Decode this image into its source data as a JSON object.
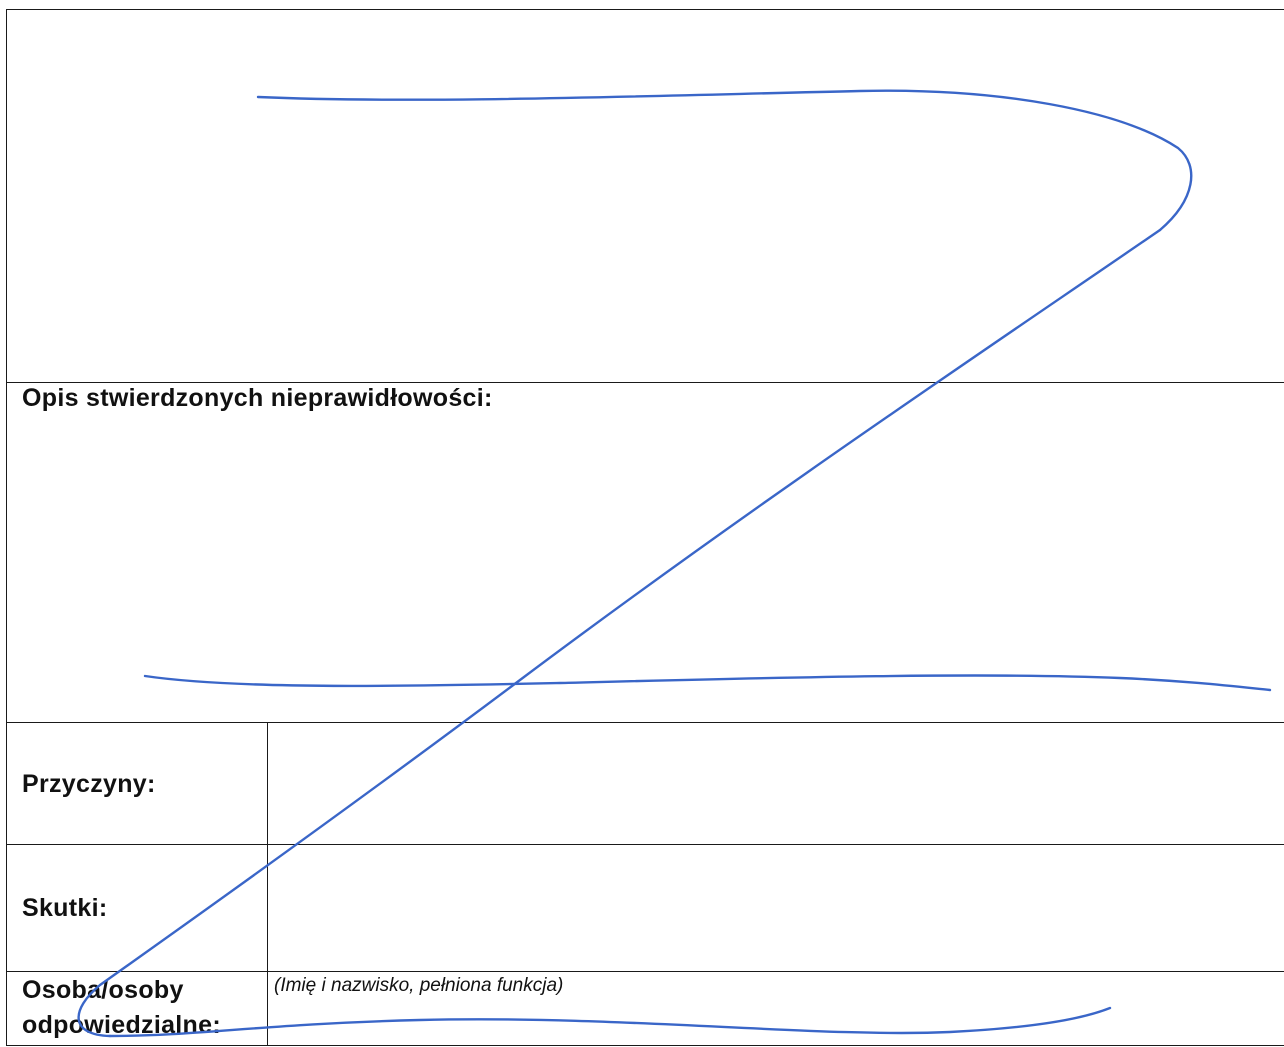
{
  "form": {
    "description_label": "Opis stwierdzonych nieprawidłowości:",
    "causes_label": "Przyczyny:",
    "effects_label": "Skutki:",
    "responsible_label_line1": "Osoba/osoby",
    "responsible_label_line2": "odpowiedzialne:",
    "responsible_hint": "(Imię i nazwisko, pełniona funkcja)"
  },
  "colors": {
    "ink": "#1a1a1a",
    "pen_strike": "#3a66c8"
  }
}
